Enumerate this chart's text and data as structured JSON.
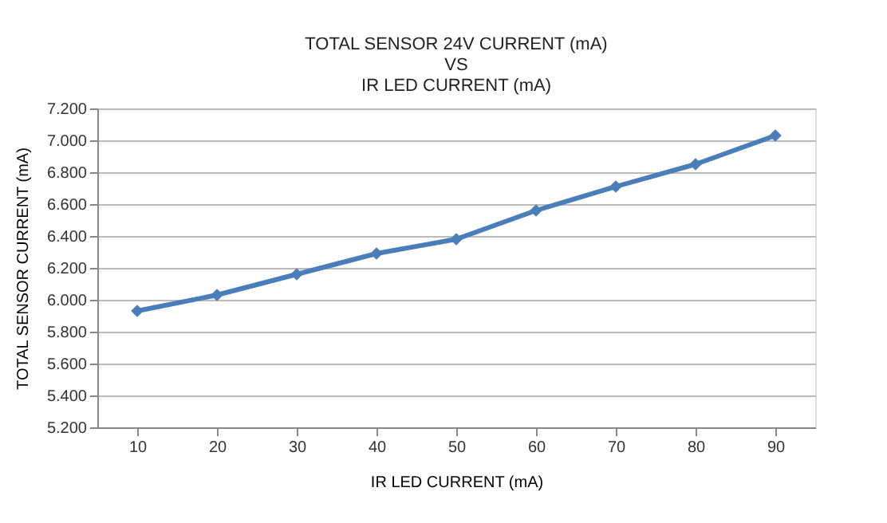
{
  "chart_data": {
    "type": "line",
    "title": [
      "TOTAL SENSOR 24V CURRENT (mA)",
      "VS",
      "IR LED CURRENT (mA)"
    ],
    "xlabel": "IR LED CURRENT (mA)",
    "ylabel": "TOTAL SENSOR CURRENT (mA)",
    "categories": [
      "10",
      "20",
      "30",
      "40",
      "50",
      "60",
      "70",
      "80",
      "90"
    ],
    "series": [
      {
        "color": "#4a7ebb",
        "values": [
          5.93,
          6.03,
          6.16,
          6.29,
          6.38,
          6.56,
          6.71,
          6.85,
          7.03
        ]
      }
    ],
    "ylim": [
      5.2,
      7.2
    ],
    "yticks": [
      {
        "value": 5.2,
        "label": "5.200"
      },
      {
        "value": 5.4,
        "label": "5.400"
      },
      {
        "value": 5.6,
        "label": "5.600"
      },
      {
        "value": 5.8,
        "label": "5.800"
      },
      {
        "value": 6.0,
        "label": "6.000"
      },
      {
        "value": 6.2,
        "label": "6.200"
      },
      {
        "value": 6.4,
        "label": "6.400"
      },
      {
        "value": 6.6,
        "label": "6.600"
      },
      {
        "value": 6.8,
        "label": "6.800"
      },
      {
        "value": 7.0,
        "label": "7.000"
      },
      {
        "value": 7.2,
        "label": "7.200"
      }
    ],
    "grid": "y",
    "marker": "diamond",
    "line_style": "solid"
  }
}
